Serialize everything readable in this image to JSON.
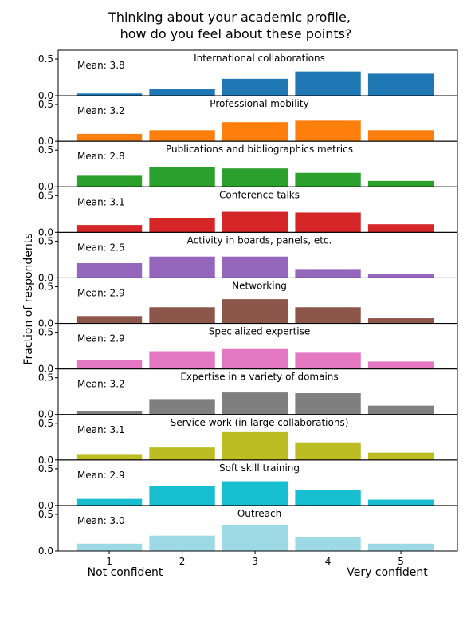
{
  "chart_data": {
    "type": "bar",
    "title_lines": [
      "Thinking about your academic profile,",
      "how do you feel about these points?"
    ],
    "ylabel": "Fraction of respondents",
    "categories": [
      "1",
      "2",
      "3",
      "4",
      "5"
    ],
    "end_labels": {
      "left": "Not confident",
      "right": "Very confident"
    },
    "ylim": [
      0,
      0.5
    ],
    "yticks": [
      "0.0",
      "0.5"
    ],
    "panels": [
      {
        "title": "International collaborations",
        "mean": "Mean: 3.8",
        "color": "#1f77b4",
        "values": [
          0.03,
          0.09,
          0.23,
          0.33,
          0.3
        ]
      },
      {
        "title": "Professional mobility",
        "mean": "Mean: 3.2",
        "color": "#ff7f0e",
        "values": [
          0.1,
          0.15,
          0.26,
          0.28,
          0.15
        ]
      },
      {
        "title": "Publications and bibliographics metrics",
        "mean": "Mean: 2.8",
        "color": "#2ca02c",
        "values": [
          0.15,
          0.27,
          0.25,
          0.19,
          0.08
        ]
      },
      {
        "title": "Conference talks",
        "mean": "Mean: 3.1",
        "color": "#d62728",
        "values": [
          0.1,
          0.19,
          0.28,
          0.27,
          0.11
        ]
      },
      {
        "title": "Activity in boards, panels, etc.",
        "mean": "Mean: 2.5",
        "color": "#9467bd",
        "values": [
          0.2,
          0.29,
          0.29,
          0.12,
          0.05
        ]
      },
      {
        "title": "Networking",
        "mean": "Mean: 2.9",
        "color": "#8c564b",
        "values": [
          0.1,
          0.22,
          0.33,
          0.22,
          0.07
        ]
      },
      {
        "title": "Specialized expertise",
        "mean": "Mean: 2.9",
        "color": "#e377c2",
        "values": [
          0.12,
          0.24,
          0.27,
          0.22,
          0.1
        ]
      },
      {
        "title": "Expertise in a variety of domains",
        "mean": "Mean: 3.2",
        "color": "#7f7f7f",
        "values": [
          0.05,
          0.21,
          0.3,
          0.29,
          0.12
        ]
      },
      {
        "title": "Service work (in large collaborations)",
        "mean": "Mean: 3.1",
        "color": "#bcbd22",
        "values": [
          0.08,
          0.17,
          0.38,
          0.24,
          0.1
        ]
      },
      {
        "title": "Soft skill training",
        "mean": "Mean: 2.9",
        "color": "#17becf",
        "values": [
          0.09,
          0.26,
          0.33,
          0.21,
          0.08
        ]
      },
      {
        "title": "Outreach",
        "mean": "Mean: 3.0",
        "color": "#9edae5",
        "values": [
          0.1,
          0.21,
          0.35,
          0.19,
          0.1
        ]
      }
    ]
  }
}
